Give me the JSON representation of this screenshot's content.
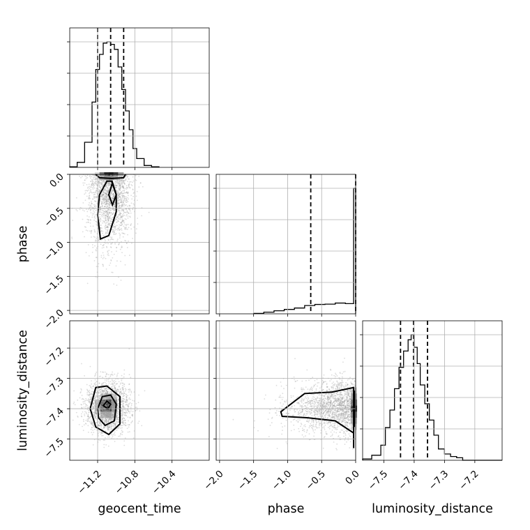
{
  "chart_data": {
    "type": "corner",
    "parameters": [
      "geocent_time",
      "phase",
      "luminosity_distance"
    ],
    "colors": {
      "line": "#000000",
      "scatter": "#9a9a9a",
      "grid": "#b0b0b0"
    },
    "grid": true,
    "ranges": {
      "geocent_time": [
        -11.5,
        -10.0
      ],
      "phase": [
        -2.05,
        0.0
      ],
      "luminosity_distance": [
        -7.57,
        -7.11
      ]
    },
    "ticks": {
      "geocent_time": {
        "values": [
          -11.2,
          -10.8,
          -10.4
        ],
        "labels": [
          "−11.2",
          "−10.8",
          "−10.4"
        ]
      },
      "phase": {
        "values": [
          -2.0,
          -1.5,
          -1.0,
          -0.5,
          0.0
        ],
        "labels": [
          "−2.0",
          "−1.5",
          "−1.0",
          "−0.5",
          "0.0"
        ]
      },
      "luminosity_distance": {
        "values": [
          -7.5,
          -7.4,
          -7.3,
          -7.2
        ],
        "labels": [
          "−7.5",
          "−7.4",
          "−7.3",
          "−7.2"
        ]
      }
    },
    "quantiles": {
      "geocent_time": [
        -11.2,
        -11.06,
        -10.92
      ],
      "phase": [
        -0.66,
        0.0
      ],
      "luminosity_distance": [
        -7.445,
        -7.402,
        -7.356
      ]
    },
    "histograms": {
      "geocent_time": {
        "edges": [
          -11.5,
          -11.42,
          -11.34,
          -11.26,
          -11.22,
          -11.18,
          -11.14,
          -11.1,
          -11.06,
          -11.02,
          -10.98,
          -10.94,
          -10.9,
          -10.86,
          -10.82,
          -10.78,
          -10.7,
          -10.62,
          -10.54
        ],
        "counts": [
          0.005,
          0.04,
          0.2,
          0.52,
          0.78,
          0.9,
          0.99,
          1.0,
          0.98,
          0.94,
          0.8,
          0.62,
          0.45,
          0.3,
          0.15,
          0.07,
          0.015,
          0.005
        ]
      },
      "phase": {
        "edges": [
          -1.5,
          -1.35,
          -1.2,
          -1.05,
          -0.9,
          -0.75,
          -0.6,
          -0.45,
          -0.3,
          -0.15,
          -0.03,
          0.0
        ],
        "counts": [
          0.003,
          0.012,
          0.022,
          0.032,
          0.042,
          0.06,
          0.068,
          0.07,
          0.078,
          0.074,
          0.91
        ]
      },
      "luminosity_distance": {
        "edges": [
          -7.57,
          -7.54,
          -7.51,
          -7.495,
          -7.48,
          -7.465,
          -7.45,
          -7.435,
          -7.42,
          -7.41,
          -7.4,
          -7.39,
          -7.38,
          -7.365,
          -7.35,
          -7.335,
          -7.32,
          -7.3,
          -7.28,
          -7.26,
          -7.24,
          -7.11
        ],
        "counts": [
          0.01,
          0.04,
          0.12,
          0.26,
          0.4,
          0.57,
          0.74,
          0.87,
          0.96,
          1.0,
          0.9,
          0.77,
          0.6,
          0.45,
          0.32,
          0.2,
          0.09,
          0.05,
          0.03,
          0.02,
          0.0
        ]
      }
    },
    "contours": {
      "phase_vs_geocent_time": [
        [
          [
            -11.1,
            -0.1
          ],
          [
            -11.18,
            -0.3
          ],
          [
            -11.2,
            -0.6
          ],
          [
            -11.17,
            -0.95
          ],
          [
            -11.08,
            -0.9
          ],
          [
            -11.0,
            -0.55
          ],
          [
            -11.0,
            -0.3
          ],
          [
            -11.05,
            -0.1
          ]
        ],
        [
          [
            -11.04,
            -0.12
          ],
          [
            -11.08,
            -0.3
          ],
          [
            -11.04,
            -0.45
          ],
          [
            -11.0,
            -0.3
          ]
        ]
      ],
      "luminosity_distance_vs_geocent_time": [
        [
          [
            -11.28,
            -7.4
          ],
          [
            -11.22,
            -7.33
          ],
          [
            -11.1,
            -7.325
          ],
          [
            -10.96,
            -7.36
          ],
          [
            -10.96,
            -7.45
          ],
          [
            -11.08,
            -7.485
          ],
          [
            -11.22,
            -7.46
          ]
        ],
        [
          [
            -11.2,
            -7.4
          ],
          [
            -11.15,
            -7.36
          ],
          [
            -11.06,
            -7.355
          ],
          [
            -11.0,
            -7.385
          ],
          [
            -11.02,
            -7.44
          ],
          [
            -11.12,
            -7.455
          ],
          [
            -11.19,
            -7.43
          ]
        ],
        [
          [
            -11.14,
            -7.39
          ],
          [
            -11.1,
            -7.375
          ],
          [
            -11.06,
            -7.385
          ],
          [
            -11.09,
            -7.4
          ]
        ]
      ],
      "luminosity_distance_vs_phase": [
        [
          [
            -0.03,
            -7.33
          ],
          [
            -0.35,
            -7.345
          ],
          [
            -0.75,
            -7.35
          ],
          [
            -1.1,
            -7.41
          ],
          [
            -1.08,
            -7.425
          ],
          [
            -0.7,
            -7.43
          ],
          [
            -0.3,
            -7.44
          ],
          [
            -0.03,
            -7.48
          ],
          [
            -0.03,
            -7.53
          ]
        ],
        [
          [
            -0.02,
            -7.34
          ],
          [
            -0.02,
            -7.46
          ]
        ]
      ]
    },
    "density_cells": {
      "phase_vs_geocent_time": [
        [
          -11.2,
          0.0,
          0.15
        ],
        [
          -11.15,
          0.0,
          0.6
        ],
        [
          -11.1,
          0.0,
          0.95
        ],
        [
          -11.05,
          0.0,
          1.0
        ],
        [
          -11.0,
          0.0,
          0.85
        ],
        [
          -10.95,
          0.0,
          0.4
        ],
        [
          -11.2,
          -0.05,
          0.08
        ],
        [
          -11.15,
          -0.05,
          0.3
        ],
        [
          -11.1,
          -0.05,
          0.5
        ],
        [
          -11.05,
          -0.05,
          0.55
        ],
        [
          -11.0,
          -0.05,
          0.35
        ],
        [
          -10.95,
          -0.05,
          0.12
        ]
      ],
      "luminosity_distance_vs_geocent_time": [
        [
          -11.14,
          -7.36,
          0.2
        ],
        [
          -11.08,
          -7.36,
          0.3
        ],
        [
          -11.02,
          -7.36,
          0.2
        ],
        [
          -11.2,
          -7.38,
          0.25
        ],
        [
          -11.14,
          -7.38,
          0.7
        ],
        [
          -11.08,
          -7.38,
          0.9
        ],
        [
          -11.02,
          -7.38,
          0.5
        ],
        [
          -11.2,
          -7.4,
          0.25
        ],
        [
          -11.14,
          -7.4,
          0.75
        ],
        [
          -11.08,
          -7.4,
          0.85
        ],
        [
          -11.02,
          -7.4,
          0.45
        ],
        [
          -11.14,
          -7.42,
          0.3
        ],
        [
          -11.08,
          -7.42,
          0.35
        ],
        [
          -11.02,
          -7.42,
          0.2
        ]
      ],
      "luminosity_distance_vs_phase": [
        [
          -0.025,
          -7.34,
          0.15
        ],
        [
          -0.025,
          -7.36,
          0.35
        ],
        [
          -0.025,
          -7.38,
          0.6
        ],
        [
          -0.025,
          -7.4,
          0.9
        ],
        [
          -0.025,
          -7.42,
          0.55
        ],
        [
          -0.025,
          -7.44,
          0.3
        ],
        [
          -0.025,
          -7.46,
          0.15
        ]
      ]
    },
    "scatter_samples": {
      "phase_vs_geocent_time": {
        "x_mean": -11.07,
        "x_sd": 0.12,
        "y_mode": 0.0,
        "y_range": [
          -1.6,
          0.0
        ]
      },
      "luminosity_distance_vs_geocent_time": {
        "x_mean": -11.09,
        "x_sd": 0.12,
        "y_mean": -7.395,
        "y_sd": 0.045
      },
      "luminosity_distance_vs_phase": {
        "x_range": [
          -1.6,
          0.0
        ],
        "y_mean": -7.395,
        "y_sd": 0.045
      }
    }
  }
}
